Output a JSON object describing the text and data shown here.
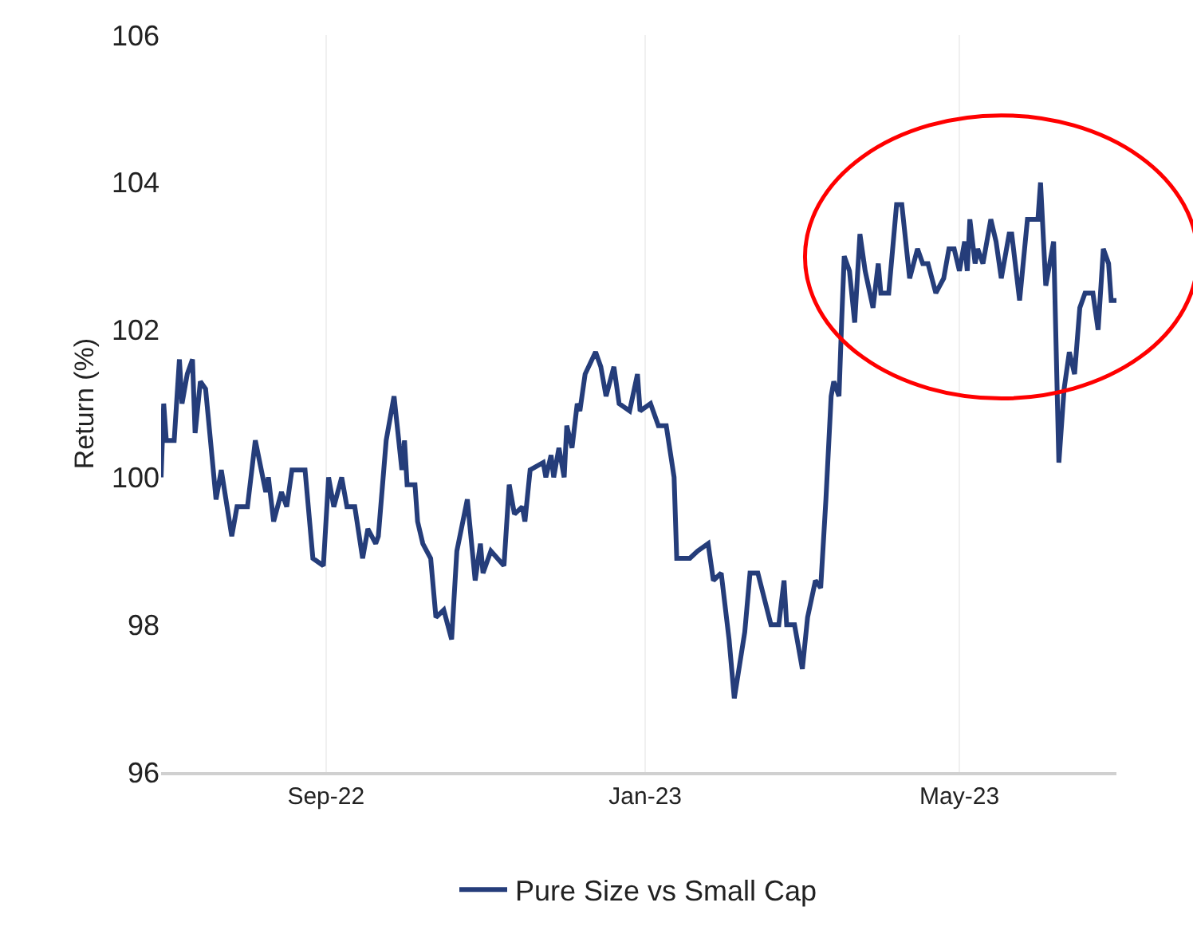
{
  "chart_data": {
    "type": "line",
    "ylabel": "Return (%)",
    "x": [
      "2022-06-30",
      "2022-07-01",
      "2022-07-02",
      "2022-07-05",
      "2022-07-07",
      "2022-07-08",
      "2022-07-10",
      "2022-07-12",
      "2022-07-13",
      "2022-07-15",
      "2022-07-17",
      "2022-07-21",
      "2022-07-23",
      "2022-07-27",
      "2022-07-29",
      "2022-08-02",
      "2022-08-05",
      "2022-08-09",
      "2022-08-10",
      "2022-08-12",
      "2022-08-15",
      "2022-08-17",
      "2022-08-19",
      "2022-08-24",
      "2022-08-27",
      "2022-08-31",
      "2022-09-02",
      "2022-09-04",
      "2022-09-07",
      "2022-09-09",
      "2022-09-12",
      "2022-09-15",
      "2022-09-17",
      "2022-09-20",
      "2022-09-21",
      "2022-09-24",
      "2022-09-27",
      "2022-09-30",
      "2022-10-01",
      "2022-10-02",
      "2022-10-05",
      "2022-10-06",
      "2022-10-08",
      "2022-10-11",
      "2022-10-13",
      "2022-10-16",
      "2022-10-19",
      "2022-10-21",
      "2022-10-25",
      "2022-10-28",
      "2022-10-30",
      "2022-10-31",
      "2022-11-03",
      "2022-11-08",
      "2022-11-10",
      "2022-11-12",
      "2022-11-15",
      "2022-11-16",
      "2022-11-18",
      "2022-11-23",
      "2022-11-24",
      "2022-11-26",
      "2022-11-27",
      "2022-11-29",
      "2022-12-01",
      "2022-12-02",
      "2022-12-04",
      "2022-12-06",
      "2022-12-07",
      "2022-12-09",
      "2022-12-13",
      "2022-12-15",
      "2022-12-17",
      "2022-12-20",
      "2022-12-22",
      "2022-12-26",
      "2022-12-29",
      "2022-12-30",
      "2023-01-03",
      "2023-01-06",
      "2023-01-09",
      "2023-01-12",
      "2023-01-13",
      "2023-01-18",
      "2023-01-21",
      "2023-01-25",
      "2023-01-27",
      "2023-01-30",
      "2023-02-02",
      "2023-02-04",
      "2023-02-08",
      "2023-02-10",
      "2023-02-13",
      "2023-02-18",
      "2023-02-21",
      "2023-02-23",
      "2023-02-24",
      "2023-02-27",
      "2023-03-02",
      "2023-03-04",
      "2023-03-07",
      "2023-03-09",
      "2023-03-11",
      "2023-03-13",
      "2023-03-14",
      "2023-03-16",
      "2023-03-17",
      "2023-03-18",
      "2023-03-20",
      "2023-03-22",
      "2023-03-24",
      "2023-03-26",
      "2023-03-29",
      "2023-03-31",
      "2023-04-01",
      "2023-04-04",
      "2023-04-07",
      "2023-04-09",
      "2023-04-12",
      "2023-04-15",
      "2023-04-17",
      "2023-04-19",
      "2023-04-22",
      "2023-04-25",
      "2023-04-27",
      "2023-04-29",
      "2023-05-01",
      "2023-05-03",
      "2023-05-04",
      "2023-05-05",
      "2023-05-07",
      "2023-05-08",
      "2023-05-10",
      "2023-05-13",
      "2023-05-15",
      "2023-05-17",
      "2023-05-20",
      "2023-05-21",
      "2023-05-24",
      "2023-05-27",
      "2023-05-31",
      "2023-06-01",
      "2023-06-03",
      "2023-06-06",
      "2023-06-08",
      "2023-06-10",
      "2023-06-12",
      "2023-06-14",
      "2023-06-16",
      "2023-06-18",
      "2023-06-21",
      "2023-06-23",
      "2023-06-25",
      "2023-06-27",
      "2023-06-28",
      "2023-06-30"
    ],
    "series": [
      {
        "name": "Pure Size vs Small Cap",
        "color": "#253d7a",
        "values": [
          100.0,
          101.0,
          100.5,
          100.5,
          101.6,
          101.0,
          101.4,
          101.6,
          100.6,
          101.3,
          101.2,
          99.7,
          100.1,
          99.2,
          99.6,
          99.6,
          100.5,
          99.8,
          100.0,
          99.4,
          99.8,
          99.6,
          100.1,
          100.1,
          98.9,
          98.8,
          100.0,
          99.6,
          100.0,
          99.6,
          99.6,
          98.9,
          99.3,
          99.1,
          99.2,
          100.5,
          101.1,
          100.1,
          100.5,
          99.9,
          99.9,
          99.4,
          99.1,
          98.9,
          98.1,
          98.2,
          97.8,
          99.0,
          99.7,
          98.6,
          99.1,
          98.7,
          99.0,
          98.8,
          99.9,
          99.5,
          99.6,
          99.4,
          100.1,
          100.2,
          100.0,
          100.3,
          100.0,
          100.4,
          100.0,
          100.7,
          100.4,
          101.0,
          100.9,
          101.4,
          101.7,
          101.5,
          101.1,
          101.5,
          101.0,
          100.9,
          101.4,
          100.9,
          101.0,
          100.7,
          100.7,
          100.0,
          98.9,
          98.9,
          99.0,
          99.1,
          98.6,
          98.7,
          97.8,
          97.0,
          97.9,
          98.7,
          98.7,
          98.0,
          98.0,
          98.6,
          98.0,
          98.0,
          97.4,
          98.1,
          98.6,
          98.5,
          99.7,
          101.1,
          101.3,
          101.1,
          102.1,
          103.0,
          102.8,
          102.1,
          103.3,
          102.8,
          102.3,
          102.9,
          102.5,
          102.5,
          103.7,
          103.7,
          102.7,
          103.1,
          102.9,
          102.9,
          102.5,
          102.7,
          103.1,
          103.1,
          102.8,
          103.2,
          102.8,
          103.5,
          102.9,
          103.1,
          102.9,
          103.5,
          103.2,
          102.7,
          103.3,
          103.3,
          102.4,
          103.5,
          103.5,
          104.0,
          102.6,
          103.2,
          100.2,
          101.2,
          101.7,
          101.4,
          102.3,
          102.5,
          102.5,
          102.0,
          103.1,
          102.9,
          102.4,
          102.4
        ]
      }
    ],
    "xlim": [
      "2022-06-30",
      "2023-06-30"
    ],
    "xticks": [
      {
        "value": "2022-09-01",
        "label": "Sep-22"
      },
      {
        "value": "2023-01-01",
        "label": "Jan-23"
      },
      {
        "value": "2023-05-01",
        "label": "May-23"
      }
    ],
    "ylim": [
      96,
      106
    ],
    "yticks": [
      96,
      98,
      100,
      102,
      104,
      106
    ],
    "grid": "x",
    "legend": "bottom",
    "marker": "none",
    "line_style": "solid"
  }
}
